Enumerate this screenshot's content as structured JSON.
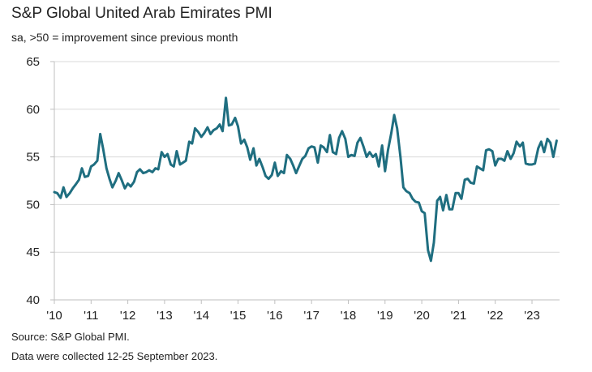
{
  "chart_data": {
    "type": "line",
    "title": "S&P Global United Arab Emirates PMI",
    "subtitle": "sa, >50 = improvement since previous month",
    "xlabel": "",
    "ylabel": "",
    "ylim": [
      40,
      65
    ],
    "yticks": [
      "40",
      "45",
      "50",
      "55",
      "60",
      "65"
    ],
    "xlim": [
      2010.0,
      2023.75
    ],
    "xtick_labels": [
      "'10",
      "'11",
      "'12",
      "'13",
      "'14",
      "'15",
      "'16",
      "'17",
      "'18",
      "'19",
      "'20",
      "'21",
      "'22",
      "'23"
    ],
    "grid": "horizontal",
    "series": [
      {
        "name": "UAE PMI",
        "color": "#1f6e80",
        "points": [
          [
            2010.0,
            51.3
          ],
          [
            2010.08,
            51.2
          ],
          [
            2010.17,
            50.7
          ],
          [
            2010.25,
            51.8
          ],
          [
            2010.33,
            50.8
          ],
          [
            2010.42,
            51.2
          ],
          [
            2010.5,
            51.7
          ],
          [
            2010.58,
            52.1
          ],
          [
            2010.67,
            52.6
          ],
          [
            2010.75,
            53.8
          ],
          [
            2010.83,
            52.9
          ],
          [
            2010.92,
            53.0
          ],
          [
            2011.0,
            54.0
          ],
          [
            2011.08,
            54.2
          ],
          [
            2011.17,
            54.6
          ],
          [
            2011.25,
            57.4
          ],
          [
            2011.33,
            55.8
          ],
          [
            2011.42,
            53.8
          ],
          [
            2011.5,
            52.7
          ],
          [
            2011.58,
            51.8
          ],
          [
            2011.67,
            52.5
          ],
          [
            2011.75,
            53.3
          ],
          [
            2011.83,
            52.6
          ],
          [
            2011.92,
            51.7
          ],
          [
            2012.0,
            52.2
          ],
          [
            2012.08,
            51.9
          ],
          [
            2012.17,
            52.4
          ],
          [
            2012.25,
            53.4
          ],
          [
            2012.33,
            53.7
          ],
          [
            2012.42,
            53.3
          ],
          [
            2012.5,
            53.4
          ],
          [
            2012.58,
            53.6
          ],
          [
            2012.67,
            53.4
          ],
          [
            2012.75,
            53.8
          ],
          [
            2012.83,
            53.7
          ],
          [
            2012.92,
            55.5
          ],
          [
            2013.0,
            55.0
          ],
          [
            2013.08,
            55.3
          ],
          [
            2013.17,
            54.2
          ],
          [
            2013.25,
            54.0
          ],
          [
            2013.33,
            55.6
          ],
          [
            2013.42,
            54.2
          ],
          [
            2013.5,
            54.4
          ],
          [
            2013.58,
            54.6
          ],
          [
            2013.67,
            56.6
          ],
          [
            2013.75,
            56.4
          ],
          [
            2013.83,
            58.0
          ],
          [
            2013.92,
            57.6
          ],
          [
            2014.0,
            57.1
          ],
          [
            2014.08,
            57.5
          ],
          [
            2014.17,
            58.1
          ],
          [
            2014.25,
            57.4
          ],
          [
            2014.33,
            57.8
          ],
          [
            2014.42,
            58.0
          ],
          [
            2014.5,
            58.4
          ],
          [
            2014.58,
            57.7
          ],
          [
            2014.67,
            61.2
          ],
          [
            2014.75,
            58.3
          ],
          [
            2014.83,
            58.4
          ],
          [
            2014.92,
            59.1
          ],
          [
            2015.0,
            58.2
          ],
          [
            2015.08,
            56.4
          ],
          [
            2015.17,
            56.8
          ],
          [
            2015.25,
            56.0
          ],
          [
            2015.33,
            54.7
          ],
          [
            2015.42,
            55.9
          ],
          [
            2015.5,
            54.1
          ],
          [
            2015.58,
            54.8
          ],
          [
            2015.67,
            53.9
          ],
          [
            2015.75,
            53.0
          ],
          [
            2015.83,
            52.7
          ],
          [
            2015.92,
            53.1
          ],
          [
            2016.0,
            54.4
          ],
          [
            2016.08,
            53.0
          ],
          [
            2016.17,
            53.5
          ],
          [
            2016.25,
            53.3
          ],
          [
            2016.33,
            55.2
          ],
          [
            2016.42,
            54.8
          ],
          [
            2016.5,
            54.1
          ],
          [
            2016.58,
            53.3
          ],
          [
            2016.67,
            54.1
          ],
          [
            2016.75,
            54.8
          ],
          [
            2016.83,
            55.1
          ],
          [
            2016.92,
            55.9
          ],
          [
            2017.0,
            56.1
          ],
          [
            2017.08,
            56.0
          ],
          [
            2017.17,
            54.4
          ],
          [
            2017.25,
            56.2
          ],
          [
            2017.33,
            56.0
          ],
          [
            2017.42,
            55.5
          ],
          [
            2017.5,
            57.3
          ],
          [
            2017.58,
            55.5
          ],
          [
            2017.67,
            55.3
          ],
          [
            2017.75,
            57.0
          ],
          [
            2017.83,
            57.7
          ],
          [
            2017.92,
            56.9
          ],
          [
            2018.0,
            55.0
          ],
          [
            2018.08,
            55.2
          ],
          [
            2018.17,
            55.1
          ],
          [
            2018.25,
            56.5
          ],
          [
            2018.33,
            57.0
          ],
          [
            2018.42,
            56.0
          ],
          [
            2018.5,
            55.0
          ],
          [
            2018.58,
            55.5
          ],
          [
            2018.67,
            55.0
          ],
          [
            2018.75,
            55.3
          ],
          [
            2018.83,
            54.0
          ],
          [
            2018.92,
            56.2
          ],
          [
            2019.0,
            53.5
          ],
          [
            2019.08,
            55.7
          ],
          [
            2019.17,
            57.5
          ],
          [
            2019.25,
            59.4
          ],
          [
            2019.33,
            58.0
          ],
          [
            2019.42,
            55.0
          ],
          [
            2019.5,
            51.8
          ],
          [
            2019.58,
            51.4
          ],
          [
            2019.67,
            51.2
          ],
          [
            2019.75,
            50.6
          ],
          [
            2019.83,
            50.3
          ],
          [
            2019.92,
            50.2
          ],
          [
            2020.0,
            49.3
          ],
          [
            2020.08,
            49.1
          ],
          [
            2020.17,
            45.2
          ],
          [
            2020.25,
            44.1
          ],
          [
            2020.33,
            46.0
          ],
          [
            2020.42,
            50.4
          ],
          [
            2020.5,
            50.8
          ],
          [
            2020.58,
            49.4
          ],
          [
            2020.67,
            51.0
          ],
          [
            2020.75,
            49.5
          ],
          [
            2020.83,
            49.5
          ],
          [
            2020.92,
            51.2
          ],
          [
            2021.0,
            51.2
          ],
          [
            2021.08,
            50.6
          ],
          [
            2021.17,
            52.6
          ],
          [
            2021.25,
            52.7
          ],
          [
            2021.33,
            52.3
          ],
          [
            2021.42,
            52.2
          ],
          [
            2021.5,
            54.0
          ],
          [
            2021.58,
            53.8
          ],
          [
            2021.67,
            53.6
          ],
          [
            2021.75,
            55.7
          ],
          [
            2021.83,
            55.8
          ],
          [
            2021.92,
            55.6
          ],
          [
            2022.0,
            54.1
          ],
          [
            2022.08,
            54.8
          ],
          [
            2022.17,
            54.8
          ],
          [
            2022.25,
            54.6
          ],
          [
            2022.33,
            55.6
          ],
          [
            2022.42,
            54.8
          ],
          [
            2022.5,
            55.4
          ],
          [
            2022.58,
            56.6
          ],
          [
            2022.67,
            56.1
          ],
          [
            2022.75,
            56.5
          ],
          [
            2022.83,
            54.3
          ],
          [
            2022.92,
            54.2
          ],
          [
            2023.0,
            54.2
          ],
          [
            2023.08,
            54.3
          ],
          [
            2023.17,
            55.9
          ],
          [
            2023.25,
            56.6
          ],
          [
            2023.33,
            55.5
          ],
          [
            2023.42,
            56.9
          ],
          [
            2023.5,
            56.5
          ],
          [
            2023.58,
            55.0
          ],
          [
            2023.67,
            56.7
          ]
        ]
      }
    ]
  },
  "footer": {
    "source": "Source: S&P Global PMI.",
    "note": "Data were collected 12-25 September 2023."
  }
}
